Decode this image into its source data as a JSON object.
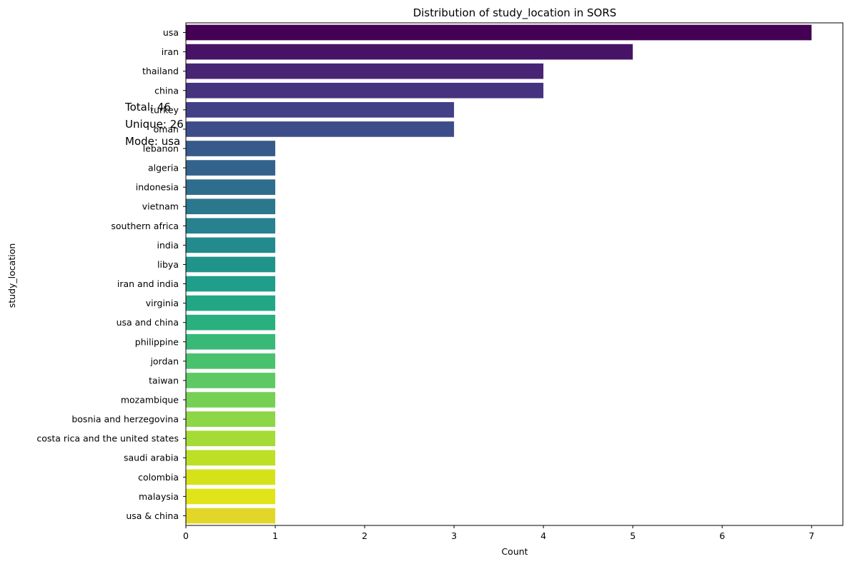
{
  "chart_data": {
    "type": "bar",
    "orientation": "horizontal",
    "title": "Distribution of study_location in SORS",
    "xlabel": "Count",
    "ylabel": "study_location",
    "xlim": [
      0,
      7.35
    ],
    "xticks": [
      0,
      1,
      2,
      3,
      4,
      5,
      6,
      7
    ],
    "grid": false,
    "legend": "none",
    "palette": "viridis",
    "categories": [
      "usa",
      "iran",
      "thailand",
      "china",
      "turkey",
      "oman",
      "lebanon",
      "algeria",
      "indonesia",
      "vietnam",
      "southern africa",
      "india",
      "libya",
      "iran and india",
      "virginia",
      "usa and china",
      "philippine",
      "jordan",
      "taiwan",
      "mozambique",
      "bosnia and herzegovina",
      "costa rica and the united states",
      "saudi arabia",
      "colombia",
      "malaysia",
      "usa & china"
    ],
    "values": [
      7,
      5,
      4,
      4,
      3,
      3,
      1,
      1,
      1,
      1,
      1,
      1,
      1,
      1,
      1,
      1,
      1,
      1,
      1,
      1,
      1,
      1,
      1,
      1,
      1,
      1
    ],
    "colors": [
      "#440154",
      "#471366",
      "#482475",
      "#46337f",
      "#424086",
      "#3d4d8a",
      "#38598c",
      "#33638d",
      "#2f6d8e",
      "#2b778e",
      "#27818e",
      "#238a8d",
      "#20948b",
      "#1f9e89",
      "#22a785",
      "#2ab07f",
      "#38b977",
      "#4ac16d",
      "#5ec962",
      "#75d054",
      "#8dd645",
      "#a5db36",
      "#bddf26",
      "#d5e21a",
      "#e1e418",
      "#e2d728"
    ],
    "annotation": [
      "Total: 46",
      "Unique: 26",
      "Mode: usa"
    ]
  }
}
